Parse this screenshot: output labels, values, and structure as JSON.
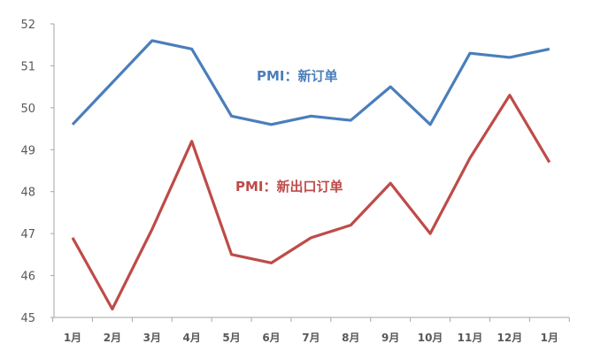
{
  "chart_data": {
    "type": "line",
    "title": "",
    "xlabel": "",
    "ylabel": "",
    "ylim": [
      45,
      52
    ],
    "yticks": [
      "45",
      "46",
      "47",
      "48",
      "49",
      "50",
      "51",
      "52"
    ],
    "categories": [
      "1月",
      "2月",
      "3月",
      "4月",
      "5月",
      "6月",
      "7月",
      "8月",
      "9月",
      "10月",
      "11月",
      "12月",
      "1月"
    ],
    "grid": false,
    "series": [
      {
        "name": "PMI：新订单",
        "color": "#4a7ebb",
        "values": [
          49.6,
          50.6,
          51.6,
          51.4,
          49.8,
          49.6,
          49.8,
          49.7,
          50.5,
          49.6,
          51.3,
          51.2,
          51.4
        ]
      },
      {
        "name": "PMI：新出口订单",
        "color": "#be4b48",
        "values": [
          46.9,
          45.2,
          47.1,
          49.2,
          46.5,
          46.3,
          46.9,
          47.2,
          48.2,
          47.0,
          48.8,
          50.3,
          48.7
        ]
      }
    ]
  }
}
